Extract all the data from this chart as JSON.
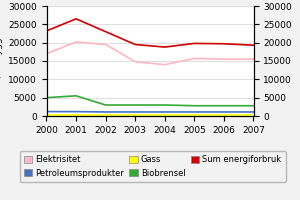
{
  "years": [
    2000,
    2001,
    2002,
    2003,
    2004,
    2005,
    2006,
    2007
  ],
  "elektrisitet": [
    17000,
    20200,
    19500,
    14800,
    14000,
    15700,
    15500,
    15500
  ],
  "petroleumsprodukter": [
    1200,
    1200,
    1100,
    1100,
    1100,
    1100,
    1100,
    1100
  ],
  "gass": [
    200,
    200,
    200,
    200,
    200,
    200,
    200,
    200
  ],
  "biobrensel": [
    5000,
    5500,
    3000,
    3000,
    3000,
    2800,
    2800,
    2800
  ],
  "sum_energiforbruk": [
    23200,
    26500,
    23000,
    19500,
    18800,
    19800,
    19700,
    19300
  ],
  "elektrisitet_color": "#ffb6c1",
  "petroleumsprodukter_color": "#4472c4",
  "gass_color": "#ffff00",
  "biobrensel_color": "#33aa33",
  "sum_energiforbruk_color": "#cc0000",
  "ylim": [
    0,
    30000
  ],
  "yticks": [
    0,
    5000,
    10000,
    15000,
    20000,
    25000,
    30000
  ],
  "background_color": "#f2f2f2",
  "plot_bg_color": "#ffffff",
  "legend_row1": [
    "Elektrisitet",
    "Petroleumsprodukter",
    "Gass"
  ],
  "legend_row2": [
    "Biobrensel",
    "Sum energiforbruk"
  ],
  "legend_colors_row1": [
    "#ffb6c1",
    "#4472c4",
    "#ffff00"
  ],
  "legend_colors_row2": [
    "#33aa33",
    "#cc0000"
  ],
  "grid_color": "#d0d0d0",
  "font_size": 6.5,
  "line_width": 1.2
}
